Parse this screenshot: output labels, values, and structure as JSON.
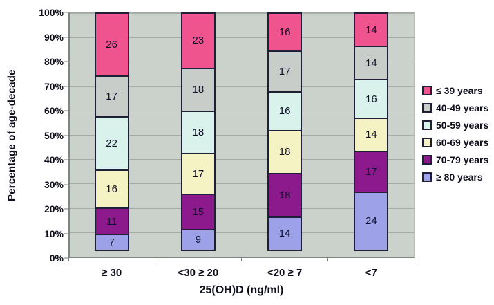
{
  "chart_data": {
    "type": "bar",
    "variant": "stacked-100-percent",
    "title": "",
    "xlabel": "25(OH)D (ng/ml)",
    "ylabel": "Percentage of age-decade",
    "categories": [
      "≥ 30",
      "<30 ≥ 20",
      "<20 ≥ 7",
      "<7"
    ],
    "series": [
      {
        "name": "≤ 39 years",
        "color": "#F0548E",
        "values": [
          26,
          23,
          16,
          14
        ]
      },
      {
        "name": "40-49 years",
        "color": "#C9CDC9",
        "values": [
          17,
          18,
          17,
          14
        ]
      },
      {
        "name": "50-59 years",
        "color": "#D9F2EB",
        "values": [
          22,
          18,
          16,
          16
        ]
      },
      {
        "name": "60-69 years",
        "color": "#F5F2C3",
        "values": [
          16,
          17,
          18,
          14
        ]
      },
      {
        "name": "70-79 years",
        "color": "#8C1A8C",
        "values": [
          11,
          15,
          18,
          17
        ]
      },
      {
        "name": "≥ 80 years",
        "color": "#9DA2E8",
        "values": [
          7,
          9,
          14,
          24
        ]
      }
    ],
    "yticks": [
      "0%",
      "10%",
      "20%",
      "30%",
      "40%",
      "50%",
      "60%",
      "70%",
      "80%",
      "90%",
      "100%"
    ],
    "ylim": [
      0,
      100
    ],
    "grid": true,
    "legend_position": "right",
    "colors": {
      "plot_background": "#CBD1CB",
      "gridline": "#A5ABA5",
      "axis_line": "#7E847E",
      "segment_border": "#1F1F38"
    }
  }
}
